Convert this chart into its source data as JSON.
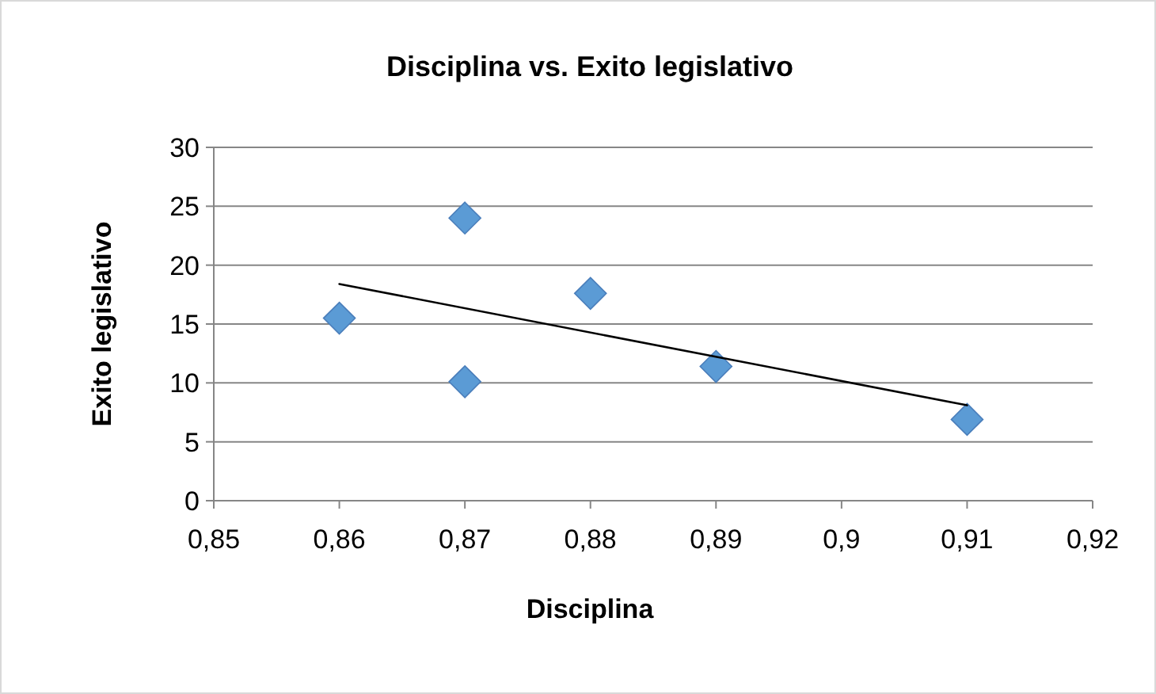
{
  "chart_data": {
    "type": "scatter",
    "title": "Disciplina vs. Exito legislativo",
    "xlabel": "Disciplina",
    "ylabel": "Exito legislativo",
    "series": [
      {
        "color": "#5b9bd5",
        "marker": "diamond",
        "x": [
          0.86,
          0.87,
          0.87,
          0.88,
          0.89,
          0.91
        ],
        "values": [
          15.5,
          24,
          10.1,
          17.6,
          11.4,
          6.9
        ]
      },
      {
        "type": "line",
        "color": "#000000",
        "marker": "none",
        "x": [
          0.86,
          0.91
        ],
        "values": [
          18.4,
          8.1
        ]
      }
    ],
    "xlim": [
      0.85,
      0.92
    ],
    "xticks": [
      {
        "value": 0.85,
        "label": "0,85"
      },
      {
        "value": 0.86,
        "label": "0,86"
      },
      {
        "value": 0.87,
        "label": "0,87"
      },
      {
        "value": 0.88,
        "label": "0,88"
      },
      {
        "value": 0.89,
        "label": "0,89"
      },
      {
        "value": 0.9,
        "label": "0,9"
      },
      {
        "value": 0.91,
        "label": "0,91"
      },
      {
        "value": 0.92,
        "label": "0,92"
      }
    ],
    "ylim": [
      0,
      30
    ],
    "yticks": [
      0,
      5,
      10,
      15,
      20,
      25,
      30
    ],
    "grid": "y"
  }
}
